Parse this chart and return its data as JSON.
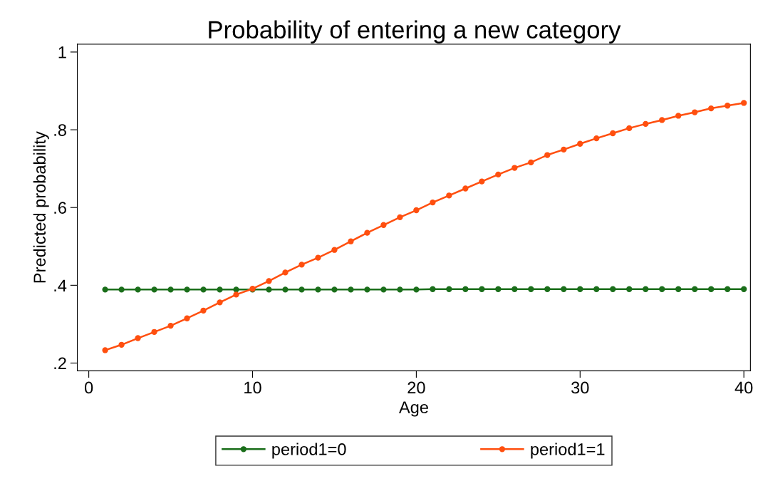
{
  "chart_data": {
    "type": "line",
    "title": "Probability of entering a new category",
    "xlabel": "Age",
    "ylabel": "Predicted probability",
    "x": [
      1,
      2,
      3,
      4,
      5,
      6,
      7,
      8,
      9,
      10,
      11,
      12,
      13,
      14,
      15,
      16,
      17,
      18,
      19,
      20,
      21,
      22,
      23,
      24,
      25,
      26,
      27,
      28,
      29,
      30,
      31,
      32,
      33,
      34,
      35,
      36,
      37,
      38,
      39,
      40
    ],
    "series": [
      {
        "name": "period1=0",
        "color": "#1a6e1a",
        "values": [
          0.389,
          0.389,
          0.389,
          0.389,
          0.389,
          0.389,
          0.389,
          0.389,
          0.389,
          0.389,
          0.389,
          0.389,
          0.389,
          0.389,
          0.389,
          0.389,
          0.389,
          0.389,
          0.389,
          0.389,
          0.39,
          0.39,
          0.39,
          0.39,
          0.39,
          0.39,
          0.39,
          0.39,
          0.39,
          0.39,
          0.39,
          0.39,
          0.39,
          0.39,
          0.39,
          0.39,
          0.39,
          0.39,
          0.39,
          0.39
        ]
      },
      {
        "name": "period1=1",
        "color": "#ff4f0f",
        "values": [
          0.233,
          0.247,
          0.264,
          0.28,
          0.296,
          0.315,
          0.335,
          0.356,
          0.376,
          0.391,
          0.411,
          0.433,
          0.453,
          0.471,
          0.491,
          0.513,
          0.535,
          0.555,
          0.575,
          0.593,
          0.613,
          0.631,
          0.649,
          0.667,
          0.685,
          0.702,
          0.716,
          0.735,
          0.749,
          0.764,
          0.778,
          0.791,
          0.804,
          0.815,
          0.825,
          0.836,
          0.845,
          0.855,
          0.862,
          0.869
        ]
      }
    ],
    "xlim": [
      -0.7,
      40.4
    ],
    "ylim": [
      0.18,
      1.02
    ],
    "xticks": [
      0,
      10,
      20,
      30,
      40
    ],
    "yticks": [
      {
        "value": 0.2,
        "label": ".2"
      },
      {
        "value": 0.4,
        "label": ".4"
      },
      {
        "value": 0.6,
        "label": ".6"
      },
      {
        "value": 0.8,
        "label": ".8"
      },
      {
        "value": 1,
        "label": "1"
      }
    ],
    "grid": false,
    "legend": "bottom",
    "marker": "circle",
    "line_style": "solid"
  }
}
